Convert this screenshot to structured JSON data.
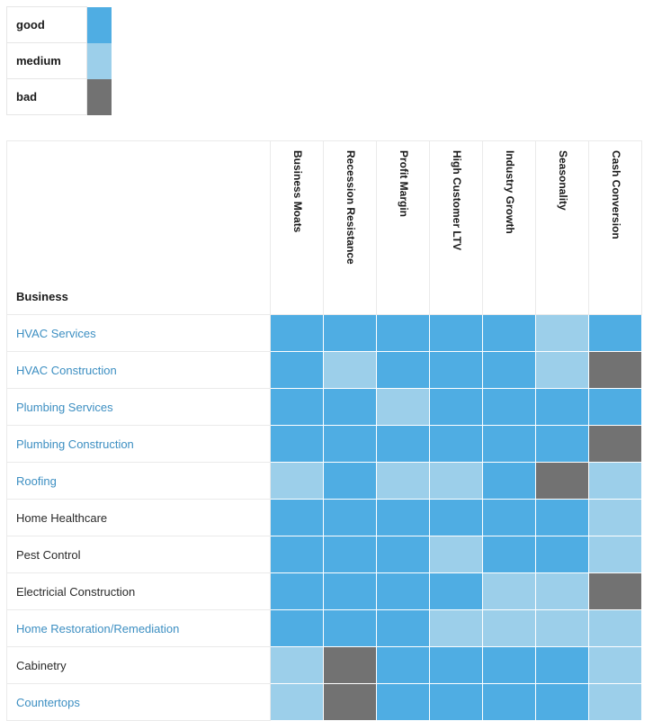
{
  "colors": {
    "good": "#4fade3",
    "medium": "#9ccfea",
    "bad": "#727272",
    "link": "#3d8fc2"
  },
  "legend": [
    {
      "label": "good",
      "level": "good"
    },
    {
      "label": "medium",
      "level": "medium"
    },
    {
      "label": "bad",
      "level": "bad"
    }
  ],
  "matrix": {
    "business_header": "Business",
    "criteria": [
      "Business Moats",
      "Recession Resistance",
      "Profit Margin",
      "High Customer LTV",
      "Industry Growth",
      "Seasonality",
      "Cash Conversion"
    ],
    "rows": [
      {
        "name": "HVAC Services",
        "link": true,
        "ratings": [
          "good",
          "good",
          "good",
          "good",
          "good",
          "medium",
          "good"
        ]
      },
      {
        "name": "HVAC Construction",
        "link": true,
        "ratings": [
          "good",
          "medium",
          "good",
          "good",
          "good",
          "medium",
          "bad"
        ]
      },
      {
        "name": "Plumbing Services",
        "link": true,
        "ratings": [
          "good",
          "good",
          "medium",
          "good",
          "good",
          "good",
          "good"
        ]
      },
      {
        "name": "Plumbing Construction",
        "link": true,
        "ratings": [
          "good",
          "good",
          "good",
          "good",
          "good",
          "good",
          "bad"
        ]
      },
      {
        "name": "Roofing",
        "link": true,
        "ratings": [
          "medium",
          "good",
          "medium",
          "medium",
          "good",
          "bad",
          "medium"
        ]
      },
      {
        "name": "Home Healthcare",
        "link": false,
        "ratings": [
          "good",
          "good",
          "good",
          "good",
          "good",
          "good",
          "medium"
        ]
      },
      {
        "name": "Pest Control",
        "link": false,
        "ratings": [
          "good",
          "good",
          "good",
          "medium",
          "good",
          "good",
          "medium"
        ]
      },
      {
        "name": "Electricial Construction",
        "link": false,
        "ratings": [
          "good",
          "good",
          "good",
          "good",
          "medium",
          "medium",
          "bad"
        ]
      },
      {
        "name": "Home Restoration/Remediation",
        "link": true,
        "ratings": [
          "good",
          "good",
          "good",
          "medium",
          "medium",
          "medium",
          "medium"
        ]
      },
      {
        "name": "Cabinetry",
        "link": false,
        "ratings": [
          "medium",
          "bad",
          "good",
          "good",
          "good",
          "good",
          "medium"
        ]
      },
      {
        "name": "Countertops",
        "link": true,
        "ratings": [
          "medium",
          "bad",
          "good",
          "good",
          "good",
          "good",
          "medium"
        ]
      }
    ]
  }
}
